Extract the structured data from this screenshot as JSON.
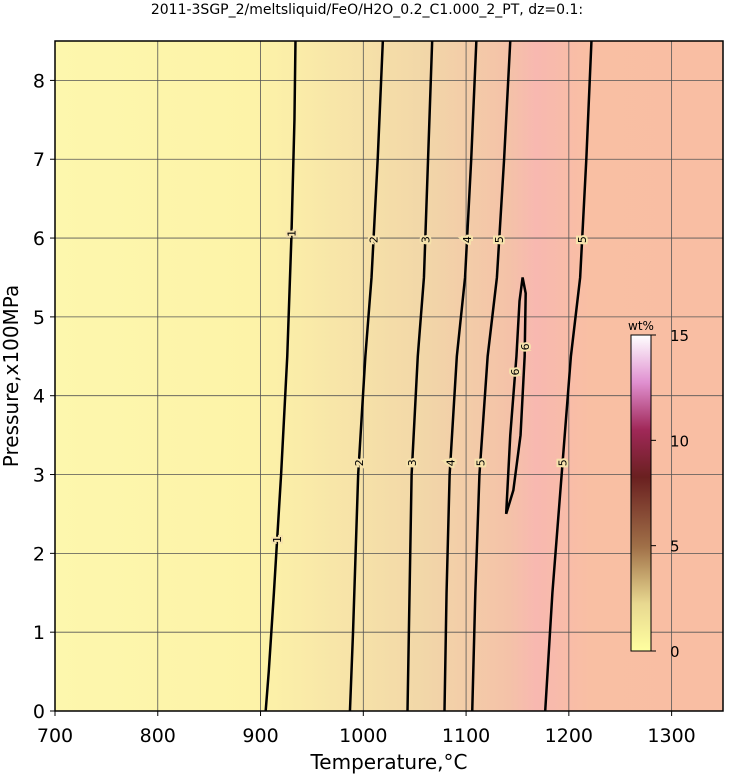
{
  "chart_data": {
    "type": "contour",
    "title": "2011-3SGP_2/meltsliquid/FeO/H2O_0.2_C1.000_2_PT, dz=0.1:",
    "x_label": "Temperature,°C",
    "y_label": "Pressure,x100MPa",
    "xlim": [
      700,
      1350
    ],
    "xticks": [
      700,
      800,
      900,
      1000,
      1100,
      1200,
      1300
    ],
    "ylim": [
      0,
      8.5
    ],
    "yticks": [
      0,
      1,
      2,
      3,
      4,
      5,
      6,
      7,
      8
    ],
    "grid": true,
    "contours": [
      {
        "level": 1,
        "x": [
          905,
          908,
          913,
          920,
          926,
          930,
          933,
          934
        ],
        "y": [
          0,
          0.5,
          1.5,
          3,
          4.5,
          6,
          7.5,
          8.5
        ]
      },
      {
        "level": 2,
        "x": [
          987,
          990,
          995,
          1002,
          1008,
          1014,
          1019
        ],
        "y": [
          0,
          1,
          3,
          4.5,
          5.5,
          7,
          8.5
        ]
      },
      {
        "level": 3,
        "x": [
          1043,
          1045,
          1047,
          1053,
          1059,
          1063,
          1067
        ],
        "y": [
          0,
          1.5,
          3,
          4.5,
          5.5,
          7,
          8.5
        ]
      },
      {
        "level": 4,
        "x": [
          1079,
          1081,
          1084,
          1091,
          1099,
          1105,
          1110
        ],
        "y": [
          0,
          1.5,
          3,
          4.5,
          5.5,
          7,
          8.5
        ]
      },
      {
        "level": 5,
        "x": [
          1106,
          1109,
          1113,
          1121,
          1130,
          1137,
          1143
        ],
        "y": [
          0,
          1.5,
          3,
          4.5,
          5.5,
          7,
          8.5
        ]
      },
      {
        "level": 6,
        "x": [
          1139,
          1143,
          1149,
          1152,
          1155,
          1158,
          1157,
          1153,
          1146,
          1139
        ],
        "y": [
          2.5,
          3.5,
          4.5,
          5.2,
          5.5,
          5.3,
          4.5,
          3.5,
          2.8,
          2.5
        ]
      },
      {
        "level": 5,
        "x": [
          1177,
          1184,
          1193,
          1202,
          1211,
          1217,
          1222
        ],
        "y": [
          0,
          1.5,
          3,
          4.5,
          5.5,
          7,
          8.5
        ]
      }
    ],
    "colorbar": {
      "label": "wt%",
      "lim": [
        0,
        15
      ],
      "ticks": [
        0,
        5,
        10,
        15
      ]
    }
  }
}
